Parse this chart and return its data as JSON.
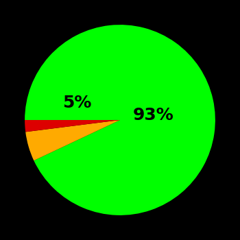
{
  "slices": [
    93,
    5,
    2
  ],
  "colors": [
    "#00ff00",
    "#ffaa00",
    "#dd0000"
  ],
  "labels": [
    "93%",
    "5%",
    ""
  ],
  "startangle": 180,
  "background_color": "#000000",
  "label_fontsize": 18,
  "label_color": "#000000",
  "label_positions": [
    [
      0.35,
      0.05
    ],
    [
      -0.45,
      0.18
    ],
    [
      null,
      null
    ]
  ],
  "figsize": [
    3.5,
    3.5
  ],
  "dpi": 100
}
